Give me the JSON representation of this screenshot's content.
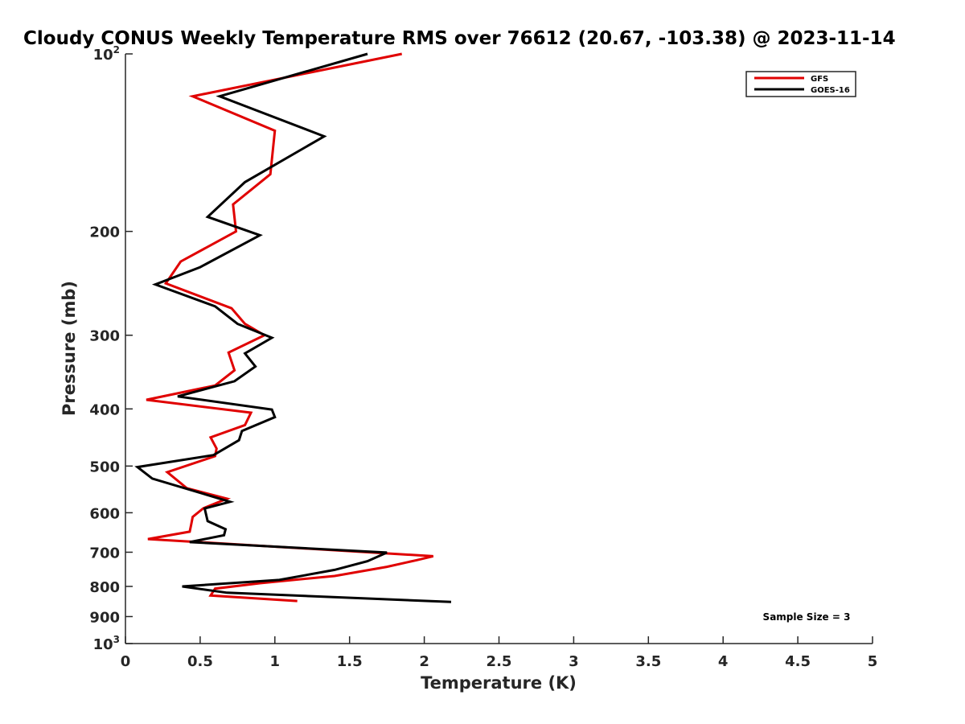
{
  "chart_data": {
    "type": "line",
    "title": "Cloudy CONUS Weekly Temperature RMS over 76612 (20.67, -103.38) @ 2023-11-14",
    "xlabel": "Temperature (K)",
    "ylabel": "Pressure (mb)",
    "xlim": [
      0,
      5
    ],
    "ylim": [
      100,
      1000
    ],
    "yscale": "log",
    "yreverse": true,
    "grid": false,
    "x_ticks": [
      "0",
      "0.5",
      "1",
      "1.5",
      "2",
      "2.5",
      "3",
      "3.5",
      "4",
      "4.5",
      "5"
    ],
    "y_ticks": [
      {
        "value": 100,
        "base": "10",
        "exp": "2"
      },
      {
        "value": 200,
        "base": "200",
        "exp": ""
      },
      {
        "value": 300,
        "base": "300",
        "exp": ""
      },
      {
        "value": 400,
        "base": "400",
        "exp": ""
      },
      {
        "value": 500,
        "base": "500",
        "exp": ""
      },
      {
        "value": 600,
        "base": "600",
        "exp": ""
      },
      {
        "value": 700,
        "base": "700",
        "exp": ""
      },
      {
        "value": 800,
        "base": "800",
        "exp": ""
      },
      {
        "value": 900,
        "base": "900",
        "exp": ""
      },
      {
        "value": 1000,
        "base": "10",
        "exp": "3"
      }
    ],
    "legend_position": "top-right",
    "annotation": "Sample Size = 3",
    "series": [
      {
        "name": "GFS",
        "color": "#e00000",
        "points": [
          [
            1.85,
            100
          ],
          [
            0.45,
            118
          ],
          [
            1.0,
            135
          ],
          [
            0.97,
            160
          ],
          [
            0.72,
            180
          ],
          [
            0.74,
            200
          ],
          [
            0.37,
            225
          ],
          [
            0.27,
            245
          ],
          [
            0.71,
            270
          ],
          [
            0.8,
            287
          ],
          [
            0.93,
            300
          ],
          [
            0.69,
            321
          ],
          [
            0.73,
            344
          ],
          [
            0.6,
            365
          ],
          [
            0.14,
            386
          ],
          [
            0.84,
            406
          ],
          [
            0.8,
            426
          ],
          [
            0.57,
            447
          ],
          [
            0.61,
            467
          ],
          [
            0.6,
            481
          ],
          [
            0.28,
            512
          ],
          [
            0.41,
            545
          ],
          [
            0.68,
            568
          ],
          [
            0.52,
            590
          ],
          [
            0.45,
            610
          ],
          [
            0.44,
            628
          ],
          [
            0.43,
            646
          ],
          [
            0.15,
            665
          ],
          [
            2.06,
            711
          ],
          [
            1.95,
            722
          ],
          [
            1.75,
            741
          ],
          [
            1.4,
            768
          ],
          [
            0.9,
            790
          ],
          [
            0.6,
            807
          ],
          [
            0.57,
            829
          ],
          [
            1.15,
            847
          ]
        ]
      },
      {
        "name": "GOES-16",
        "color": "#000000",
        "points": [
          [
            1.62,
            100
          ],
          [
            0.63,
            118
          ],
          [
            1.33,
            138
          ],
          [
            0.8,
            165
          ],
          [
            0.55,
            189
          ],
          [
            0.9,
            203
          ],
          [
            0.5,
            230
          ],
          [
            0.2,
            246
          ],
          [
            0.6,
            268
          ],
          [
            0.75,
            287
          ],
          [
            0.98,
            303
          ],
          [
            0.8,
            322
          ],
          [
            0.87,
            339
          ],
          [
            0.73,
            359
          ],
          [
            0.35,
            381
          ],
          [
            0.98,
            401
          ],
          [
            1.0,
            413
          ],
          [
            0.78,
            436
          ],
          [
            0.76,
            452
          ],
          [
            0.59,
            479
          ],
          [
            0.08,
            502
          ],
          [
            0.18,
            525
          ],
          [
            0.55,
            560
          ],
          [
            0.7,
            575
          ],
          [
            0.53,
            590
          ],
          [
            0.55,
            620
          ],
          [
            0.67,
            640
          ],
          [
            0.66,
            655
          ],
          [
            0.43,
            673
          ],
          [
            1.75,
            701
          ],
          [
            1.62,
            725
          ],
          [
            1.4,
            750
          ],
          [
            1.03,
            780
          ],
          [
            0.38,
            800
          ],
          [
            0.68,
            820
          ],
          [
            2.18,
            850
          ]
        ]
      }
    ]
  }
}
